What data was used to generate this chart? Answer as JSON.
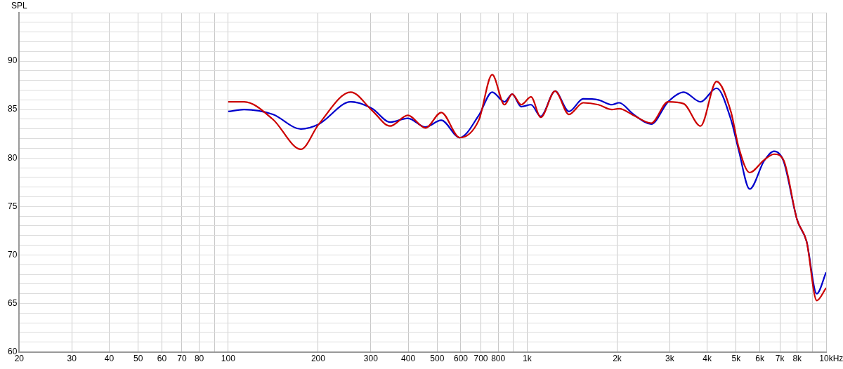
{
  "chart_data": {
    "type": "line",
    "ylabel": "SPL",
    "log": "x",
    "grid": true,
    "legend": false,
    "xlim": [
      20,
      10000
    ],
    "ylim": [
      60,
      95
    ],
    "xticks": [
      20,
      30,
      40,
      50,
      60,
      70,
      80,
      {
        "value": 90,
        "label": null
      },
      100,
      200,
      300,
      400,
      500,
      600,
      700,
      800,
      {
        "value": 900,
        "label": null
      },
      {
        "value": 1000,
        "label": "1k"
      },
      {
        "value": 2000,
        "label": "2k"
      },
      {
        "value": 3000,
        "label": "3k"
      },
      {
        "value": 4000,
        "label": "4k"
      },
      {
        "value": 5000,
        "label": "5k"
      },
      {
        "value": 6000,
        "label": "6k"
      },
      {
        "value": 7000,
        "label": "7k"
      },
      {
        "value": 8000,
        "label": "8k"
      },
      {
        "value": 9000,
        "label": null
      },
      {
        "value": 10000,
        "label": "10k"
      }
    ],
    "xlabel": "Hz",
    "yticks": [
      60,
      {
        "value": 61,
        "label": null
      },
      {
        "value": 62,
        "label": null
      },
      {
        "value": 63,
        "label": null
      },
      {
        "value": 64,
        "label": null
      },
      65,
      {
        "value": 66,
        "label": null
      },
      {
        "value": 67,
        "label": null
      },
      {
        "value": 68,
        "label": null
      },
      {
        "value": 69,
        "label": null
      },
      70,
      {
        "value": 71,
        "label": null
      },
      {
        "value": 72,
        "label": null
      },
      {
        "value": 73,
        "label": null
      },
      {
        "value": 74,
        "label": null
      },
      75,
      {
        "value": 76,
        "label": null
      },
      {
        "value": 77,
        "label": null
      },
      {
        "value": 78,
        "label": null
      },
      {
        "value": 79,
        "label": null
      },
      80,
      {
        "value": 81,
        "label": null
      },
      {
        "value": 82,
        "label": null
      },
      {
        "value": 83,
        "label": null
      },
      {
        "value": 84,
        "label": null
      },
      85,
      {
        "value": 86,
        "label": null
      },
      {
        "value": 87,
        "label": null
      },
      {
        "value": 88,
        "label": null
      },
      {
        "value": 89,
        "label": null
      },
      90,
      {
        "value": 91,
        "label": null
      },
      {
        "value": 92,
        "label": null
      },
      {
        "value": 93,
        "label": null
      },
      {
        "value": 94,
        "label": null
      },
      {
        "value": 95,
        "label": null
      }
    ],
    "x": [
      100,
      113,
      141,
      175,
      201,
      257,
      303,
      348,
      399,
      457,
      516,
      595,
      689,
      764,
      840,
      891,
      955,
      1030,
      1110,
      1240,
      1380,
      1540,
      1730,
      1920,
      2030,
      2270,
      2600,
      2960,
      3340,
      3800,
      4300,
      4800,
      5100,
      5550,
      6200,
      6700,
      7200,
      8000,
      8600,
      9300,
      10000
    ],
    "series": [
      {
        "color": "#0000cc",
        "values": [
          84.8,
          85.0,
          84.5,
          83.0,
          83.5,
          85.8,
          85.1,
          83.7,
          84.1,
          83.2,
          83.9,
          82.1,
          84.4,
          86.8,
          85.8,
          86.6,
          85.3,
          85.5,
          84.3,
          86.9,
          84.8,
          86.1,
          86.0,
          85.5,
          85.7,
          84.5,
          83.5,
          85.8,
          86.8,
          85.8,
          87.2,
          84.0,
          80.8,
          76.8,
          79.7,
          80.7,
          79.7,
          73.6,
          71.4,
          66.0,
          68.2
        ]
      },
      {
        "color": "#cc0000",
        "values": [
          85.8,
          85.8,
          84.0,
          80.9,
          83.5,
          86.8,
          84.9,
          83.3,
          84.4,
          83.1,
          84.7,
          82.1,
          83.9,
          88.6,
          85.5,
          86.6,
          85.5,
          86.3,
          84.2,
          86.9,
          84.5,
          85.7,
          85.5,
          85.0,
          85.1,
          84.4,
          83.6,
          85.8,
          85.6,
          83.3,
          87.9,
          84.8,
          81.1,
          78.5,
          79.8,
          80.4,
          79.8,
          73.6,
          71.4,
          65.3,
          66.6
        ]
      }
    ]
  }
}
